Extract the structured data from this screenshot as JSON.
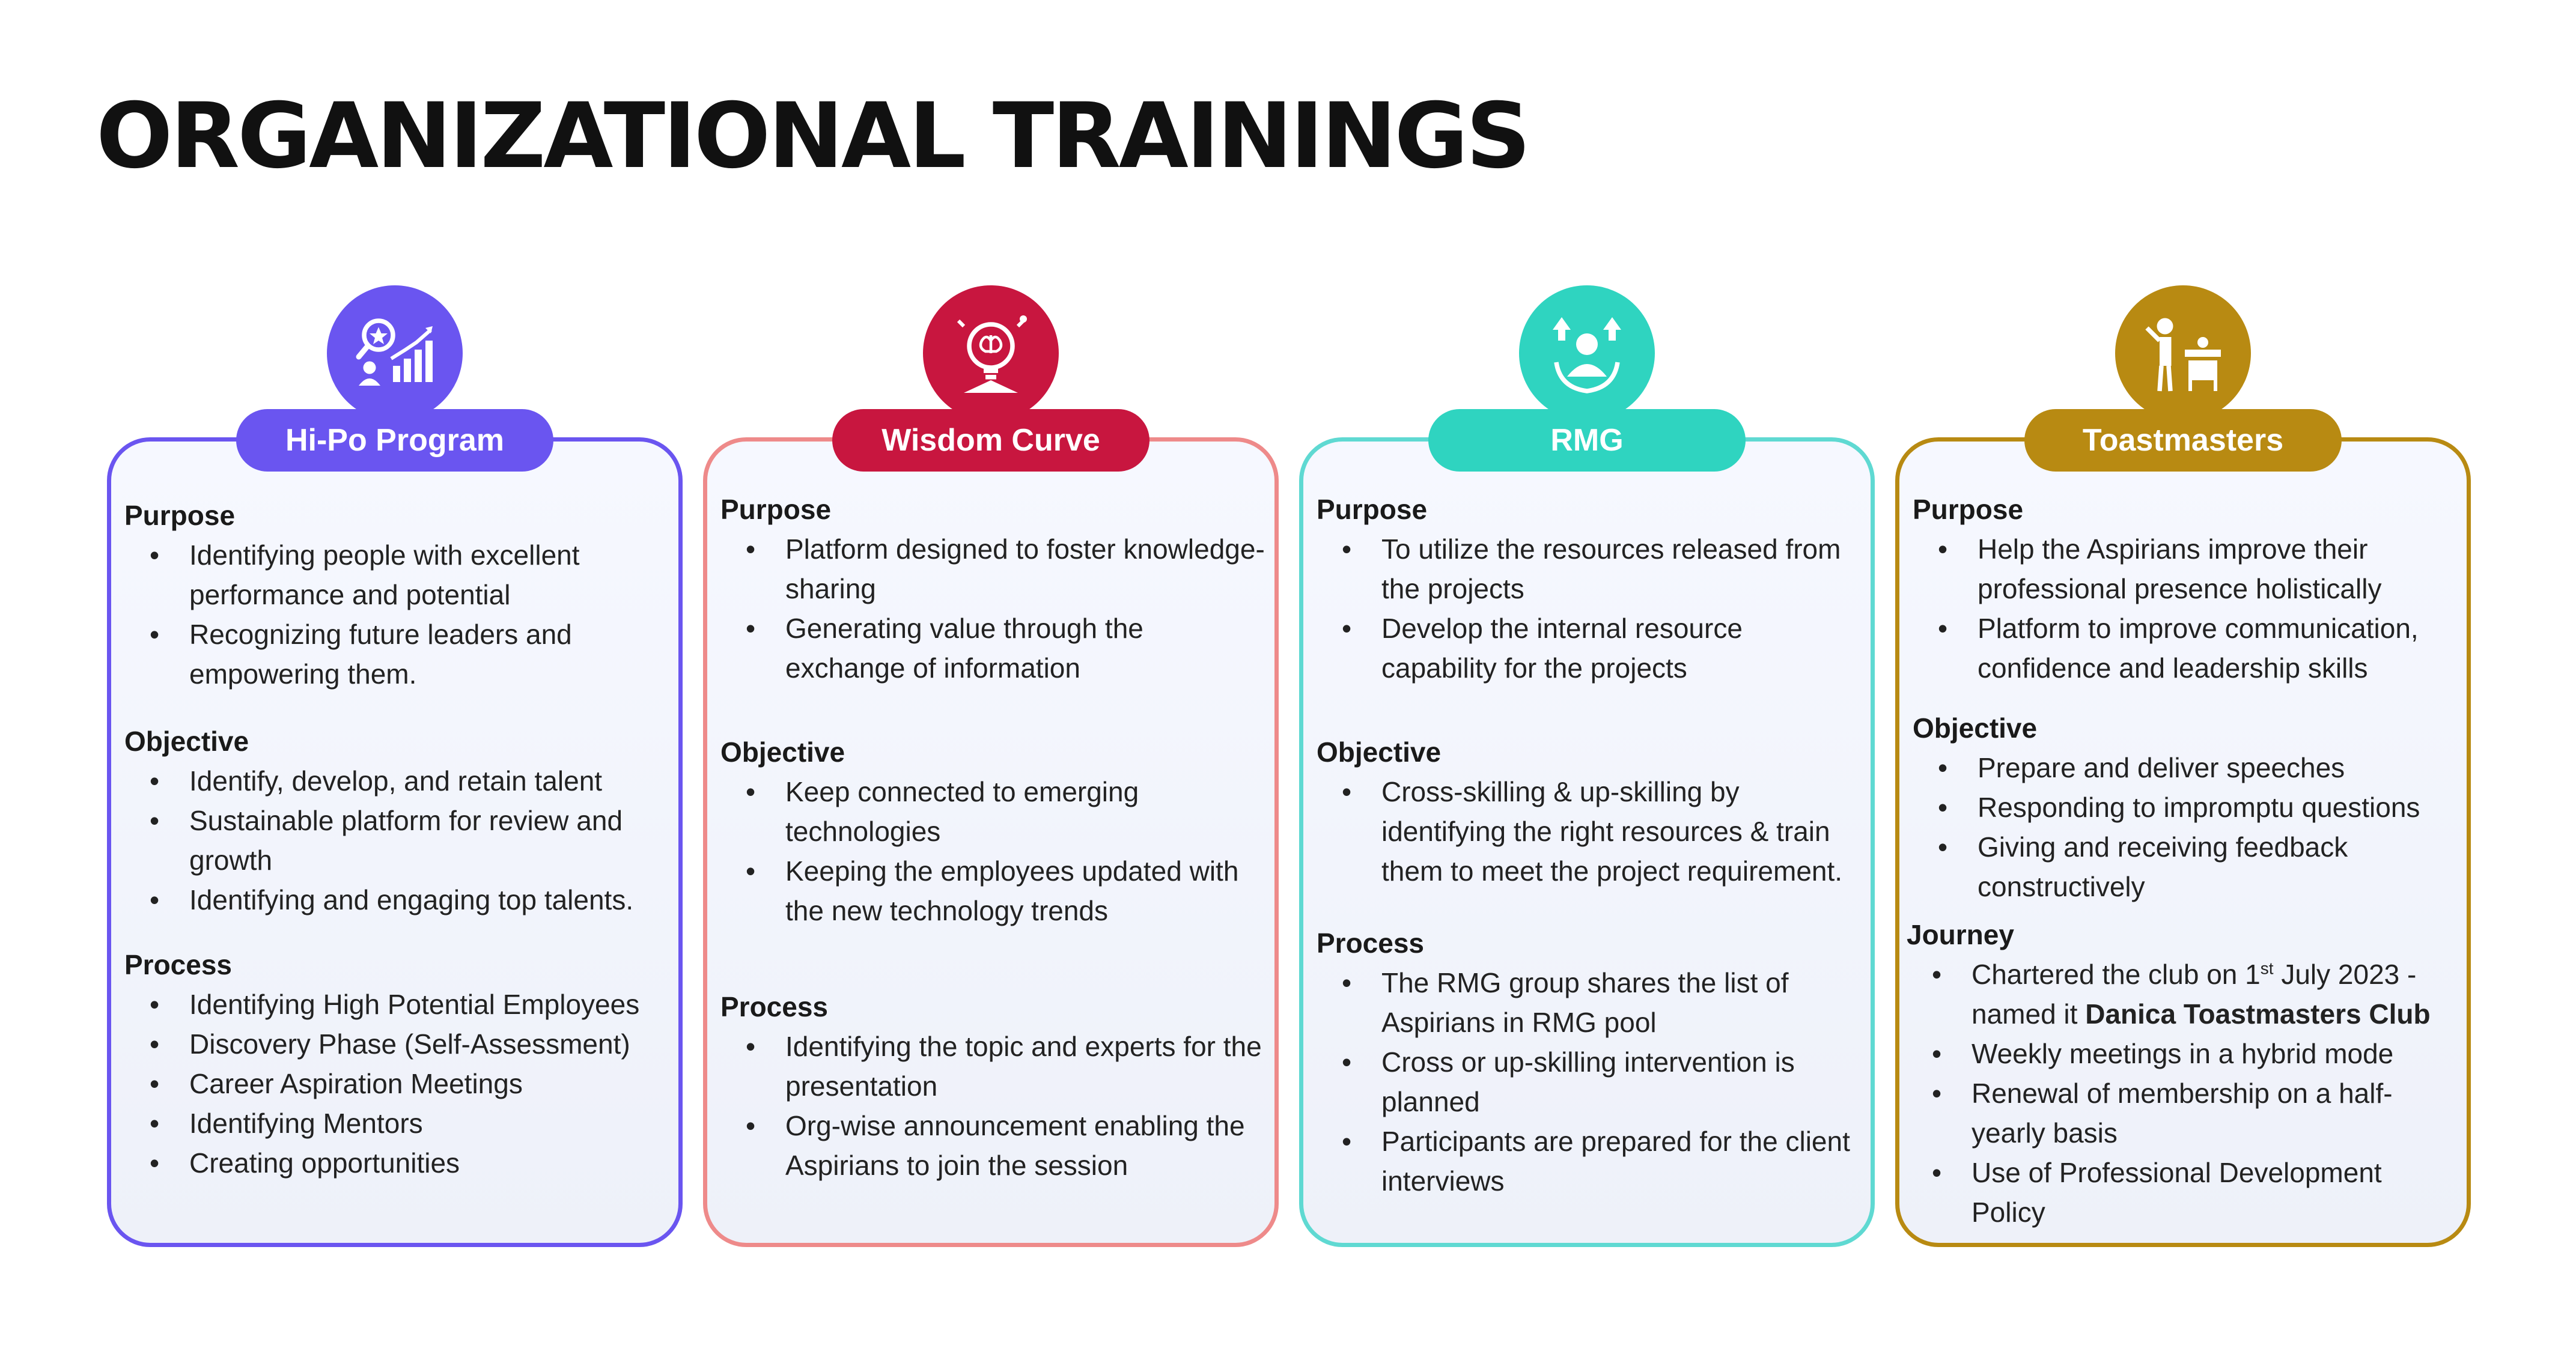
{
  "page": {
    "title": "ORGANIZATIONAL TRAININGS"
  },
  "colors": {
    "hipo": "#6a55f0",
    "wisdom": "#c8163f",
    "rmg": "#2fd4c0",
    "toastmasters": "#b88a12"
  },
  "cards": [
    {
      "name": "Hi-Po Program",
      "icon": "career-growth-chart-icon",
      "sections": [
        {
          "title": "Purpose",
          "items": [
            "Identifying people with excellent performance and potential",
            "Recognizing future leaders and empowering them."
          ]
        },
        {
          "title": "Objective",
          "items": [
            "Identify, develop, and retain talent",
            "Sustainable platform for review and growth",
            "Identifying and engaging top talents."
          ]
        },
        {
          "title": "Process",
          "items": [
            "Identifying High Potential Employees",
            "Discovery Phase (Self-Assessment)",
            "Career Aspiration Meetings",
            "Identifying Mentors",
            "Creating opportunities"
          ]
        }
      ]
    },
    {
      "name": "Wisdom Curve",
      "icon": "brain-lightbulb-icon",
      "sections": [
        {
          "title": "Purpose",
          "items": [
            "Platform designed to foster knowledge-sharing",
            "Generating value through the exchange of information"
          ]
        },
        {
          "title": "Objective",
          "items": [
            "Keep connected to emerging technologies",
            "Keeping the employees updated with the new technology trends"
          ]
        },
        {
          "title": "Process",
          "items": [
            "Identifying the topic and experts for the presentation",
            "Org-wise announcement enabling the Aspirians to join the session"
          ]
        }
      ]
    },
    {
      "name": "RMG",
      "icon": "resource-upskill-icon",
      "sections": [
        {
          "title": "Purpose",
          "items": [
            "To utilize the resources released from the projects",
            "Develop the internal resource capability for the projects"
          ]
        },
        {
          "title": "Objective",
          "items": [
            "Cross-skilling & up-skilling by identifying the right resources & train them to meet the project requirement."
          ]
        },
        {
          "title": "Process",
          "items": [
            "The RMG group shares the list of Aspirians in RMG pool",
            "Cross or up-skilling intervention is planned",
            "Participants are prepared for the client interviews"
          ]
        }
      ]
    },
    {
      "name": "Toastmasters",
      "icon": "speaker-podium-icon",
      "sections": [
        {
          "title": "Purpose",
          "items": [
            "Help the Aspirians improve their professional presence holistically",
            "Platform to improve communication, confidence and leadership skills"
          ]
        },
        {
          "title": "Objective",
          "items": [
            "Prepare and deliver speeches",
            "Responding to impromptu questions",
            "Giving and receiving feedback constructively"
          ]
        },
        {
          "title": "Journey",
          "items": [
            {
              "pre": "Chartered the club on 1",
              "sup": "st",
              "post": " July 2023 - named it ",
              "bold": "Danica Toastmasters Club"
            },
            "Weekly meetings in a hybrid mode",
            "Renewal of membership on a half-yearly basis",
            "Use of Professional Development Policy"
          ]
        }
      ]
    }
  ]
}
